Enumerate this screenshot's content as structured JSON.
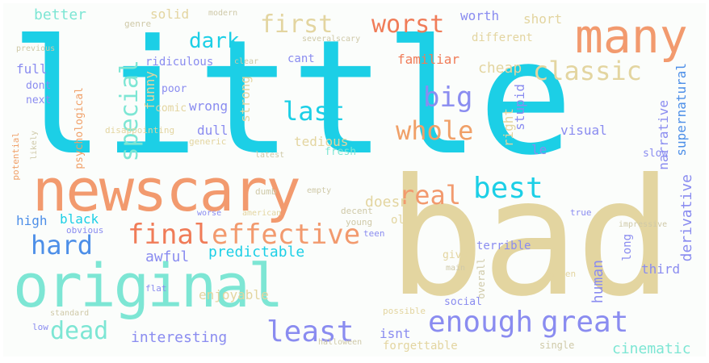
{
  "words": {
    "little": {
      "text": "little",
      "color": "#1ccfe6"
    },
    "bad": {
      "text": "bad",
      "color": "#e3d5a0"
    },
    "newscary": {
      "text": "newscary",
      "color": "#f29a6e"
    },
    "original": {
      "text": "original",
      "color": "#7de6d4"
    },
    "many": {
      "text": "many",
      "color": "#f29a6e"
    },
    "classic": {
      "text": "classic",
      "color": "#e3d5a0"
    },
    "first": {
      "text": "first",
      "color": "#e3d5a0"
    },
    "worst": {
      "text": "worst",
      "color": "#f07c58"
    },
    "dark": {
      "text": "dark",
      "color": "#1ccfe6"
    },
    "special": {
      "text": "special",
      "color": "#7de6d4"
    },
    "big": {
      "text": "big",
      "color": "#8a8cf0"
    },
    "last": {
      "text": "last",
      "color": "#1ccfe6"
    },
    "whole": {
      "text": "whole",
      "color": "#f0a068"
    },
    "best": {
      "text": "best",
      "color": "#1ccfe6"
    },
    "real": {
      "text": "real",
      "color": "#f29a6e"
    },
    "final": {
      "text": "final",
      "color": "#f07c58"
    },
    "effective": {
      "text": "effective",
      "color": "#f29a6e"
    },
    "hard": {
      "text": "hard",
      "color": "#4d8fe8"
    },
    "enough": {
      "text": "enough",
      "color": "#8a8cf0"
    },
    "great": {
      "text": "great",
      "color": "#8a8cf0"
    },
    "least": {
      "text": "least",
      "color": "#8a8cf0"
    },
    "dead": {
      "text": "dead",
      "color": "#7de6d4"
    },
    "better": {
      "text": "better",
      "color": "#7de6d4"
    },
    "solid": {
      "text": "solid",
      "color": "#e3d5a0"
    },
    "worth": {
      "text": "worth",
      "color": "#8a8cf0"
    },
    "short": {
      "text": "short",
      "color": "#e3d5a0"
    },
    "genre": {
      "text": "genre",
      "color": "#cfc9a8"
    },
    "different": {
      "text": "different",
      "color": "#e3d5a0"
    },
    "cant": {
      "text": "cant",
      "color": "#8a8cf0"
    },
    "ridiculous": {
      "text": "ridiculous",
      "color": "#8a8cf0"
    },
    "familiar": {
      "text": "familiar",
      "color": "#f07c58"
    },
    "cheap": {
      "text": "cheap",
      "color": "#e3d5a0"
    },
    "full": {
      "text": "full",
      "color": "#8a8cf0"
    },
    "dont": {
      "text": "dont",
      "color": "#8a8cf0"
    },
    "poor": {
      "text": "poor",
      "color": "#8a8cf0"
    },
    "comic": {
      "text": "comic",
      "color": "#e3d5a0"
    },
    "funny": {
      "text": "funny",
      "color": "#e3d5a0"
    },
    "next": {
      "text": "next",
      "color": "#8a8cf0"
    },
    "wrong": {
      "text": "wrong",
      "color": "#8a8cf0"
    },
    "strong": {
      "text": "strong",
      "color": "#e3d5a0"
    },
    "dull": {
      "text": "dull",
      "color": "#8a8cf0"
    },
    "stupid": {
      "text": "stupid",
      "color": "#8a8cf0"
    },
    "right": {
      "text": "right",
      "color": "#e3d5a0"
    },
    "visual": {
      "text": "visual",
      "color": "#8a8cf0"
    },
    "psychological": {
      "text": "psychological",
      "color": "#f0a068"
    },
    "tedious": {
      "text": "tedious",
      "color": "#e3d5a0"
    },
    "generic": {
      "text": "generic",
      "color": "#e3d5a0"
    },
    "fresh": {
      "text": "fresh",
      "color": "#7de6d4"
    },
    "le": {
      "text": "le",
      "color": "#8a8cf0"
    },
    "doesnt": {
      "text": "doesnt",
      "color": "#e3d5a0"
    },
    "narrative": {
      "text": "narrative",
      "color": "#8a8cf0"
    },
    "supernatural": {
      "text": "supernatural",
      "color": "#4d8fe8"
    },
    "slow": {
      "text": "slow",
      "color": "#8a8cf0"
    },
    "derivative": {
      "text": "derivative",
      "color": "#8a8cf0"
    },
    "potential": {
      "text": "potential",
      "color": "#f0a068"
    },
    "high": {
      "text": "high",
      "color": "#4d8fe8"
    },
    "black": {
      "text": "black",
      "color": "#1ccfe6"
    },
    "old": {
      "text": "old",
      "color": "#e3d5a0"
    },
    "decent": {
      "text": "decent",
      "color": "#cfc9a8"
    },
    "young": {
      "text": "young",
      "color": "#cfc9a8"
    },
    "teen": {
      "text": "teen",
      "color": "#8a8cf0"
    },
    "true": {
      "text": "true",
      "color": "#8a8cf0"
    },
    "predictable": {
      "text": "predictable",
      "color": "#1ccfe6"
    },
    "awful": {
      "text": "awful",
      "color": "#8a8cf0"
    },
    "american": {
      "text": "american",
      "color": "#e3d5a0"
    },
    "worse": {
      "text": "worse",
      "color": "#8a8cf0"
    },
    "human": {
      "text": "human",
      "color": "#8a8cf0"
    },
    "terrible": {
      "text": "terrible",
      "color": "#8a8cf0"
    },
    "give": {
      "text": "give",
      "color": "#e3d5a0"
    },
    "third": {
      "text": "third",
      "color": "#8a8cf0"
    },
    "overall": {
      "text": "overall",
      "color": "#cfc9a8"
    },
    "alien": {
      "text": "alien",
      "color": "#e3d5a0"
    },
    "flat": {
      "text": "flat",
      "color": "#8a8cf0"
    },
    "enjoyable": {
      "text": "enjoyable",
      "color": "#e3d5a0"
    },
    "interesting": {
      "text": "interesting",
      "color": "#8a8cf0"
    },
    "isnt": {
      "text": "isnt",
      "color": "#8a8cf0"
    },
    "social": {
      "text": "social",
      "color": "#8a8cf0"
    },
    "forgettable": {
      "text": "forgettable",
      "color": "#e3d5a0"
    },
    "cinematic": {
      "text": "cinematic",
      "color": "#7de6d4"
    },
    "single": {
      "text": "single",
      "color": "#cfc9a8"
    },
    "possible": {
      "text": "possible",
      "color": "#e3d5a0"
    },
    "long": {
      "text": "long",
      "color": "#8a8cf0"
    },
    "low": {
      "text": "low",
      "color": "#8a8cf0"
    },
    "obvious": {
      "text": "obvious",
      "color": "#8a8cf0"
    },
    "latest": {
      "text": "latest",
      "color": "#cfc9a8"
    },
    "halloween": {
      "text": "halloween",
      "color": "#cfc9a8"
    },
    "main": {
      "text": "main",
      "color": "#cfc9a8"
    },
    "previous": {
      "text": "previous",
      "color": "#cfc9a8"
    },
    "likely": {
      "text": "likely",
      "color": "#cfc9a8"
    },
    "disappointing": {
      "text": "disappointing",
      "color": "#e3d5a0"
    },
    "standard": {
      "text": "standard",
      "color": "#cfc9a8"
    },
    "several": {
      "text": "several",
      "color": "#cfc9a8"
    },
    "scary": {
      "text": "scary",
      "color": "#cfc9a8"
    },
    "modern": {
      "text": "modern",
      "color": "#cfc9a8"
    },
    "empty": {
      "text": "empty",
      "color": "#cfc9a8"
    },
    "dumb": {
      "text": "dumb",
      "color": "#cfc9a8"
    },
    "clear": {
      "text": "clear",
      "color": "#cfc9a8"
    },
    "impressive": {
      "text": "impressive",
      "color": "#cfc9a8"
    }
  }
}
